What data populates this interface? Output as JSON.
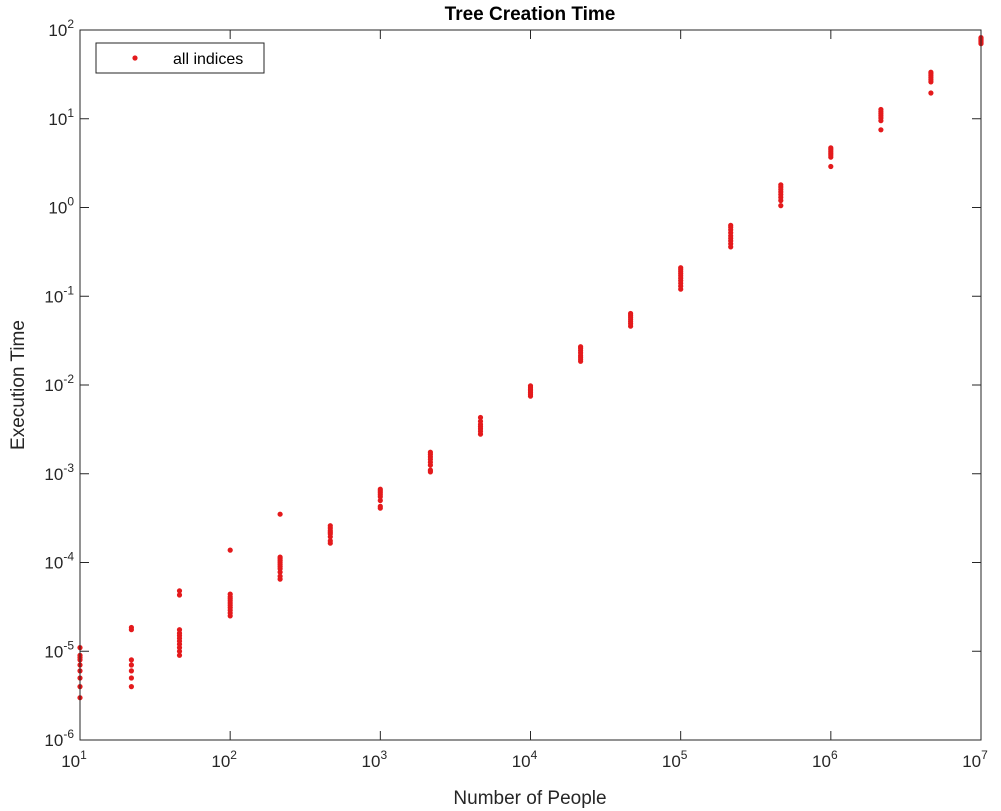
{
  "chart_data": {
    "type": "scatter",
    "title": "Tree Creation Time",
    "xlabel": "Number of People",
    "ylabel": "Execution Time",
    "xscale": "log",
    "yscale": "log",
    "xlim": [
      10,
      10000000
    ],
    "ylim": [
      1e-06,
      100
    ],
    "grid": false,
    "legend_position": "top-left",
    "marker_color": "#e41a1c",
    "x_ticks": [
      {
        "base": "10",
        "exp": "1"
      },
      {
        "base": "10",
        "exp": "2"
      },
      {
        "base": "10",
        "exp": "3"
      },
      {
        "base": "10",
        "exp": "4"
      },
      {
        "base": "10",
        "exp": "5"
      },
      {
        "base": "10",
        "exp": "6"
      },
      {
        "base": "10",
        "exp": "7"
      }
    ],
    "y_ticks": [
      {
        "base": "10",
        "exp": "-6"
      },
      {
        "base": "10",
        "exp": "-5"
      },
      {
        "base": "10",
        "exp": "-4"
      },
      {
        "base": "10",
        "exp": "-3"
      },
      {
        "base": "10",
        "exp": "-2"
      },
      {
        "base": "10",
        "exp": "-1"
      },
      {
        "base": "10",
        "exp": "0"
      },
      {
        "base": "10",
        "exp": "1"
      },
      {
        "base": "10",
        "exp": "2"
      }
    ],
    "series": [
      {
        "name": "all indices",
        "points": [
          {
            "x": 10,
            "y": [
              3e-06,
              4e-06,
              5e-06,
              6e-06,
              7e-06,
              8e-06,
              8.5e-06,
              9e-06,
              1.1e-05
            ]
          },
          {
            "x": 22,
            "y": [
              4e-06,
              5e-06,
              6e-06,
              7e-06,
              8e-06,
              1.75e-05,
              1.85e-05
            ]
          },
          {
            "x": 46,
            "y": [
              9e-06,
              1e-05,
              1.1e-05,
              1.2e-05,
              1.3e-05,
              1.4e-05,
              1.5e-05,
              1.6e-05,
              1.75e-05,
              4.3e-05,
              4.8e-05
            ]
          },
          {
            "x": 100,
            "y": [
              2.5e-05,
              2.7e-05,
              2.9e-05,
              3.1e-05,
              3.3e-05,
              3.5e-05,
              3.7e-05,
              3.9e-05,
              4.1e-05,
              4.4e-05,
              0.000138
            ]
          },
          {
            "x": 215,
            "y": [
              6.5e-05,
              7e-05,
              7.8e-05,
              8.5e-05,
              9e-05,
              9.5e-05,
              0.0001,
              0.000105,
              0.00011,
              0.000115,
              0.00035
            ]
          },
          {
            "x": 464,
            "y": [
              0.000165,
              0.000175,
              0.000195,
              0.00021,
              0.00022,
              0.00023,
              0.000245,
              0.00026
            ]
          },
          {
            "x": 1000,
            "y": [
              0.00041,
              0.00043,
              0.0005,
              0.00055,
              0.00058,
              0.00061,
              0.00064,
              0.00067
            ]
          },
          {
            "x": 2154,
            "y": [
              0.00105,
              0.0011,
              0.00125,
              0.00135,
              0.00145,
              0.00155,
              0.00165,
              0.00175
            ]
          },
          {
            "x": 4642,
            "y": [
              0.0028,
              0.003,
              0.0032,
              0.0034,
              0.0036,
              0.0039,
              0.0043
            ]
          },
          {
            "x": 10000,
            "y": [
              0.0075,
              0.0079,
              0.0083,
              0.0087,
              0.009,
              0.0094,
              0.0098
            ]
          },
          {
            "x": 21544,
            "y": [
              0.0185,
              0.0195,
              0.0205,
              0.0215,
              0.023,
              0.0245,
              0.026,
              0.027
            ]
          },
          {
            "x": 46416,
            "y": [
              0.046,
              0.049,
              0.052,
              0.055,
              0.058,
              0.061,
              0.064
            ]
          },
          {
            "x": 100000,
            "y": [
              0.12,
              0.13,
              0.14,
              0.15,
              0.16,
              0.17,
              0.18,
              0.19,
              0.2,
              0.21
            ]
          },
          {
            "x": 215443,
            "y": [
              0.36,
              0.39,
              0.42,
              0.45,
              0.48,
              0.52,
              0.56,
              0.6,
              0.63
            ]
          },
          {
            "x": 464159,
            "y": [
              1.05,
              1.2,
              1.3,
              1.4,
              1.5,
              1.6,
              1.7,
              1.8
            ]
          },
          {
            "x": 1000000,
            "y": [
              2.9,
              3.7,
              3.9,
              4.1,
              4.3,
              4.5,
              4.7
            ]
          },
          {
            "x": 2154435,
            "y": [
              7.5,
              9.5,
              10.2,
              10.8,
              11.4,
              12.0,
              12.7
            ]
          },
          {
            "x": 4641589,
            "y": [
              19.5,
              26.0,
              27.5,
              29.0,
              30.5,
              32.0,
              33.5
            ]
          },
          {
            "x": 10000000,
            "y": [
              70,
              72,
              74,
              76,
              78,
              80,
              82
            ]
          }
        ]
      }
    ]
  }
}
